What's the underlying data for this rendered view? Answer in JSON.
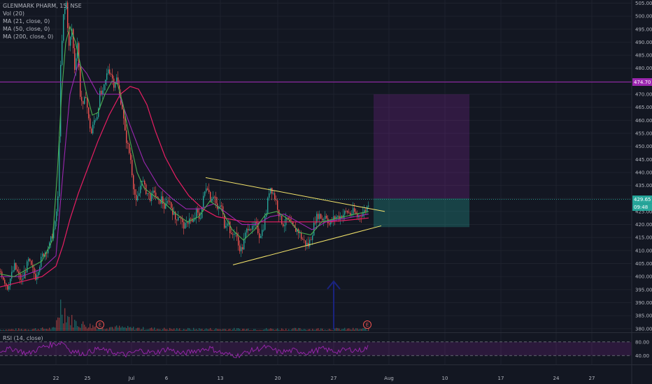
{
  "legend": {
    "symbol": "GLENMARK PHARM, 15, NSE",
    "vol": "Vol (20)",
    "ma21": "MA (21, close, 0)",
    "ma50": "MA (50, close, 0)",
    "ma200": "MA (200, close, 0)"
  },
  "rsi_label": "RSI (14, close)",
  "colors": {
    "background": "#131722",
    "candle_up": "#26a69a",
    "candle_down": "#ef5350",
    "ma21": "#4caf50",
    "ma50": "#9c27b0",
    "ma200": "#e91e63",
    "triangle": "#f5e56b",
    "arrow": "#1a237e",
    "rsi": "#9c27b0",
    "resistance": "#9c27b0",
    "price_line": "#26a69a"
  },
  "chart_data": {
    "type": "candlestick",
    "y_ticks": [
      505,
      500,
      495,
      490,
      485,
      480,
      475,
      470,
      465,
      460,
      455,
      450,
      445,
      440,
      435,
      430,
      425,
      420,
      415,
      410,
      405,
      400,
      395,
      390,
      385,
      380
    ],
    "ylim": [
      378.6,
      506.2
    ],
    "x_ticks": [
      "22",
      "25",
      "Jul",
      "6",
      "13",
      "20",
      "27",
      "Aug",
      "10",
      "17",
      "24",
      "27"
    ],
    "resistance_level": "474.70",
    "last_price": "429.65",
    "countdown": "09:48",
    "rsi_ticks": [
      "80.00",
      "40.00"
    ],
    "rsi_band": [
      40,
      80
    ],
    "event_markers": [
      "E",
      "E"
    ],
    "triangle": {
      "upper": [
        [
          "Jul 10",
          438
        ],
        [
          "Jul 30",
          425
        ]
      ],
      "lower": [
        [
          "Jul 13",
          404.5
        ],
        [
          "Jul 30",
          419.5
        ]
      ]
    },
    "long_position": {
      "entry": 430,
      "stop": 419,
      "target": 470
    },
    "series_anchors": {
      "price": [
        [
          0,
          402
        ],
        [
          10,
          396
        ],
        [
          20,
          404
        ],
        [
          30,
          398
        ],
        [
          40,
          406
        ],
        [
          50,
          400
        ],
        [
          60,
          408
        ],
        [
          70,
          412
        ],
        [
          78,
          420
        ],
        [
          82,
          430
        ],
        [
          86,
          480
        ],
        [
          90,
          500
        ],
        [
          94,
          505
        ],
        [
          98,
          488
        ],
        [
          102,
          495
        ],
        [
          106,
          480
        ],
        [
          110,
          490
        ],
        [
          114,
          470
        ],
        [
          118,
          465
        ],
        [
          122,
          470
        ],
        [
          126,
          460
        ],
        [
          130,
          455
        ],
        [
          134,
          460
        ],
        [
          138,
          462
        ],
        [
          142,
          470
        ],
        [
          146,
          470
        ],
        [
          150,
          475
        ],
        [
          154,
          480
        ],
        [
          158,
          478
        ],
        [
          162,
          474
        ],
        [
          166,
          476
        ],
        [
          170,
          470
        ],
        [
          174,
          465
        ],
        [
          178,
          455
        ],
        [
          182,
          450
        ],
        [
          186,
          445
        ],
        [
          190,
          435
        ],
        [
          194,
          428
        ],
        [
          198,
          432
        ],
        [
          202,
          438
        ],
        [
          206,
          434
        ],
        [
          210,
          432
        ],
        [
          215,
          430
        ],
        [
          220,
          433
        ],
        [
          225,
          428
        ],
        [
          230,
          430
        ],
        [
          235,
          426
        ],
        [
          240,
          430
        ],
        [
          245,
          426
        ],
        [
          250,
          422
        ],
        [
          255,
          424
        ],
        [
          260,
          420
        ],
        [
          265,
          419
        ],
        [
          270,
          423
        ],
        [
          275,
          420
        ],
        [
          280,
          425
        ],
        [
          285,
          422
        ],
        [
          290,
          430
        ],
        [
          295,
          436
        ],
        [
          300,
          430
        ],
        [
          305,
          432
        ],
        [
          310,
          425
        ],
        [
          315,
          428
        ],
        [
          320,
          420
        ],
        [
          325,
          422
        ],
        [
          330,
          415
        ],
        [
          335,
          418
        ],
        [
          340,
          412
        ],
        [
          345,
          410
        ],
        [
          350,
          416
        ],
        [
          355,
          420
        ],
        [
          360,
          418
        ],
        [
          365,
          420
        ],
        [
          370,
          416
        ],
        [
          375,
          418
        ],
        [
          380,
          425
        ],
        [
          385,
          435
        ],
        [
          390,
          432
        ],
        [
          395,
          428
        ],
        [
          400,
          422
        ],
        [
          405,
          420
        ],
        [
          410,
          422
        ],
        [
          415,
          420
        ],
        [
          420,
          418
        ],
        [
          425,
          418
        ],
        [
          430,
          415
        ],
        [
          435,
          413
        ],
        [
          440,
          412
        ],
        [
          445,
          416
        ],
        [
          450,
          422
        ],
        [
          455,
          424
        ],
        [
          460,
          422
        ],
        [
          465,
          424
        ],
        [
          470,
          420
        ],
        [
          475,
          422
        ],
        [
          480,
          423
        ],
        [
          485,
          423
        ],
        [
          490,
          424
        ],
        [
          495,
          425
        ],
        [
          500,
          424
        ],
        [
          505,
          425
        ],
        [
          510,
          423
        ],
        [
          515,
          424
        ],
        [
          520,
          425
        ],
        [
          525,
          427
        ],
        [
          527,
          430
        ]
      ],
      "ma21": [
        [
          0,
          401
        ],
        [
          20,
          400
        ],
        [
          40,
          403
        ],
        [
          60,
          406
        ],
        [
          75,
          414
        ],
        [
          82,
          440
        ],
        [
          88,
          470
        ],
        [
          94,
          490
        ],
        [
          100,
          496
        ],
        [
          108,
          490
        ],
        [
          116,
          480
        ],
        [
          124,
          470
        ],
        [
          132,
          462
        ],
        [
          140,
          463
        ],
        [
          150,
          470
        ],
        [
          160,
          475
        ],
        [
          168,
          474
        ],
        [
          176,
          466
        ],
        [
          186,
          452
        ],
        [
          196,
          440
        ],
        [
          206,
          434
        ],
        [
          220,
          431
        ],
        [
          236,
          428
        ],
        [
          252,
          424
        ],
        [
          268,
          421
        ],
        [
          284,
          423
        ],
        [
          300,
          429
        ],
        [
          316,
          426
        ],
        [
          332,
          418
        ],
        [
          348,
          414
        ],
        [
          364,
          418
        ],
        [
          380,
          424
        ],
        [
          396,
          425
        ],
        [
          412,
          422
        ],
        [
          428,
          417
        ],
        [
          444,
          416
        ],
        [
          460,
          421
        ],
        [
          476,
          422
        ],
        [
          492,
          423
        ],
        [
          508,
          424
        ],
        [
          527,
          425
        ]
      ],
      "ma50": [
        [
          0,
          400
        ],
        [
          30,
          400
        ],
        [
          60,
          403
        ],
        [
          80,
          408
        ],
        [
          90,
          440
        ],
        [
          100,
          470
        ],
        [
          112,
          482
        ],
        [
          124,
          478
        ],
        [
          140,
          470
        ],
        [
          156,
          470
        ],
        [
          170,
          470
        ],
        [
          186,
          458
        ],
        [
          206,
          444
        ],
        [
          226,
          435
        ],
        [
          246,
          430
        ],
        [
          266,
          426
        ],
        [
          286,
          426
        ],
        [
          306,
          428
        ],
        [
          326,
          424
        ],
        [
          346,
          420
        ],
        [
          366,
          420
        ],
        [
          386,
          423
        ],
        [
          406,
          424
        ],
        [
          426,
          421
        ],
        [
          446,
          418
        ],
        [
          466,
          421
        ],
        [
          486,
          422
        ],
        [
          506,
          423
        ],
        [
          527,
          424
        ]
      ],
      "ma200": [
        [
          0,
          396
        ],
        [
          30,
          398
        ],
        [
          60,
          400
        ],
        [
          80,
          404
        ],
        [
          90,
          412
        ],
        [
          100,
          422
        ],
        [
          112,
          432
        ],
        [
          126,
          442
        ],
        [
          140,
          452
        ],
        [
          156,
          462
        ],
        [
          172,
          470
        ],
        [
          186,
          473
        ],
        [
          198,
          472
        ],
        [
          210,
          466
        ],
        [
          222,
          456
        ],
        [
          236,
          446
        ],
        [
          252,
          438
        ],
        [
          270,
          431
        ],
        [
          290,
          426
        ],
        [
          310,
          423
        ],
        [
          330,
          422
        ],
        [
          350,
          421
        ],
        [
          370,
          421
        ],
        [
          390,
          421
        ],
        [
          410,
          421
        ],
        [
          430,
          421
        ],
        [
          450,
          421
        ],
        [
          470,
          421
        ],
        [
          490,
          421.5
        ],
        [
          510,
          422
        ],
        [
          527,
          422.5
        ]
      ],
      "volume": [
        [
          0,
          2
        ],
        [
          40,
          3
        ],
        [
          78,
          4
        ],
        [
          82,
          28
        ],
        [
          86,
          40
        ],
        [
          90,
          35
        ],
        [
          94,
          30
        ],
        [
          98,
          20
        ],
        [
          104,
          15
        ],
        [
          110,
          12
        ],
        [
          130,
          8
        ],
        [
          160,
          6
        ],
        [
          200,
          4
        ],
        [
          250,
          3
        ],
        [
          300,
          3
        ],
        [
          350,
          3
        ],
        [
          400,
          3
        ],
        [
          450,
          3
        ],
        [
          500,
          3
        ],
        [
          527,
          3
        ]
      ],
      "rsi": [
        [
          0,
          55
        ],
        [
          20,
          60
        ],
        [
          40,
          45
        ],
        [
          60,
          65
        ],
        [
          80,
          75
        ],
        [
          90,
          80
        ],
        [
          100,
          55
        ],
        [
          120,
          45
        ],
        [
          140,
          60
        ],
        [
          160,
          50
        ],
        [
          180,
          42
        ],
        [
          200,
          55
        ],
        [
          220,
          48
        ],
        [
          240,
          60
        ],
        [
          260,
          45
        ],
        [
          280,
          55
        ],
        [
          300,
          62
        ],
        [
          320,
          45
        ],
        [
          340,
          40
        ],
        [
          360,
          55
        ],
        [
          380,
          65
        ],
        [
          400,
          50
        ],
        [
          420,
          55
        ],
        [
          440,
          48
        ],
        [
          460,
          60
        ],
        [
          480,
          52
        ],
        [
          500,
          58
        ],
        [
          515,
          55
        ],
        [
          527,
          65
        ]
      ]
    }
  }
}
